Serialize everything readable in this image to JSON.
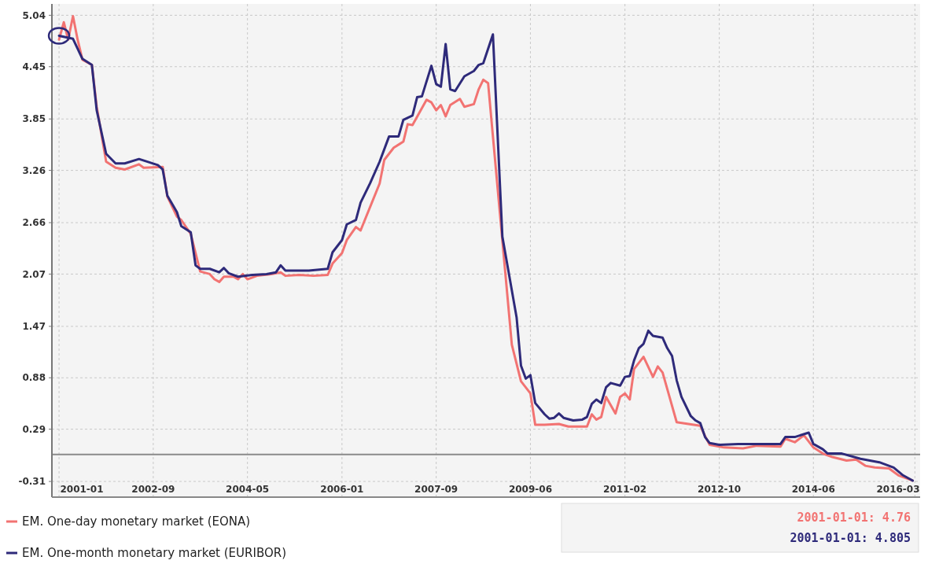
{
  "chart_data": {
    "type": "line",
    "xlim": [
      "2000-11-16",
      "2016-03-20"
    ],
    "ylim": [
      -0.49,
      5.17
    ],
    "yticks": [
      5.04,
      4.45,
      3.85,
      3.26,
      2.66,
      2.07,
      1.47,
      0.88,
      0.29,
      -0.31
    ],
    "xticks": [
      {
        "value": "2001-01-01",
        "label": "2001-01"
      },
      {
        "value": "2002-09-01",
        "label": "2002-09"
      },
      {
        "value": "2004-05-01",
        "label": "2004-05"
      },
      {
        "value": "2006-01-01",
        "label": "2006-01"
      },
      {
        "value": "2007-09-01",
        "label": "2007-09"
      },
      {
        "value": "2009-05-01",
        "label": "2009-06"
      },
      {
        "value": "2011-01-01",
        "label": "2011-02"
      },
      {
        "value": "2012-09-01",
        "label": "2012-10"
      },
      {
        "value": "2014-05-01",
        "label": "2014-06"
      },
      {
        "value": "2016-02-15",
        "label": "2016-03"
      }
    ],
    "grid": true,
    "legend": "bottom left",
    "marker": "none",
    "line_style": "solid",
    "ref_lines": [
      {
        "axis": "y",
        "value": 0,
        "color": "#8a8a8a"
      }
    ],
    "annotations": [
      "2001-01-01: 4.76",
      "2001-01-01: 4.805"
    ],
    "series": [
      {
        "name": "EM. One-day monetary market (EONA)",
        "color": "#f27372",
        "x": [
          "2001-01",
          "2001-02",
          "2001-03",
          "2001-04",
          "2001-05",
          "2001-06",
          "2001-08",
          "2001-09",
          "2001-11",
          "2002-01",
          "2002-03",
          "2002-06",
          "2002-07",
          "2002-11",
          "2002-12",
          "2003-02",
          "2003-03",
          "2003-05",
          "2003-07",
          "2003-09",
          "2003-10",
          "2003-11",
          "2003-12",
          "2004-02",
          "2004-03",
          "2004-04",
          "2004-05",
          "2004-07",
          "2004-10",
          "2004-12",
          "2005-01",
          "2005-04",
          "2005-07",
          "2005-10",
          "2005-11",
          "2006-01",
          "2006-02",
          "2006-04",
          "2006-05",
          "2006-09",
          "2006-10",
          "2006-12",
          "2007-02",
          "2007-03",
          "2007-04",
          "2007-07",
          "2007-08",
          "2007-09",
          "2007-10",
          "2007-11",
          "2007-12",
          "2008-02",
          "2008-03",
          "2008-05",
          "2008-06",
          "2008-07",
          "2008-08",
          "2009-01",
          "2009-03",
          "2009-05",
          "2009-06",
          "2009-08",
          "2009-11",
          "2010-01",
          "2010-05",
          "2010-06",
          "2010-07",
          "2010-08",
          "2010-09",
          "2010-11",
          "2010-12",
          "2011-01",
          "2011-02",
          "2011-03",
          "2011-05",
          "2011-07",
          "2011-08",
          "2011-09",
          "2011-12",
          "2012-05",
          "2012-06",
          "2012-07",
          "2012-10",
          "2013-02",
          "2013-05",
          "2013-10",
          "2013-11",
          "2014-01",
          "2014-03",
          "2014-05",
          "2014-07",
          "2014-09",
          "2014-12",
          "2015-02",
          "2015-04",
          "2015-06",
          "2015-09",
          "2015-11",
          "2016-02"
        ],
        "values": [
          4.76,
          4.96,
          4.76,
          5.03,
          4.76,
          4.53,
          4.47,
          3.99,
          3.36,
          3.29,
          3.27,
          3.33,
          3.29,
          3.3,
          2.96,
          2.73,
          2.69,
          2.53,
          2.1,
          2.07,
          2.01,
          1.98,
          2.04,
          2.04,
          2.01,
          2.07,
          2.01,
          2.05,
          2.07,
          2.09,
          2.05,
          2.06,
          2.05,
          2.06,
          2.19,
          2.31,
          2.46,
          2.61,
          2.57,
          3.11,
          3.38,
          3.52,
          3.59,
          3.79,
          3.78,
          4.07,
          4.04,
          3.95,
          4.01,
          3.88,
          4.01,
          4.08,
          3.99,
          4.02,
          4.19,
          4.3,
          4.26,
          1.26,
          0.84,
          0.7,
          0.34,
          0.34,
          0.35,
          0.32,
          0.32,
          0.46,
          0.4,
          0.43,
          0.66,
          0.47,
          0.66,
          0.7,
          0.63,
          0.98,
          1.12,
          0.89,
          1.01,
          0.94,
          0.37,
          0.33,
          0.21,
          0.11,
          0.08,
          0.07,
          0.1,
          0.09,
          0.18,
          0.14,
          0.22,
          0.08,
          0.01,
          -0.03,
          -0.07,
          -0.06,
          -0.13,
          -0.15,
          -0.16,
          -0.24,
          -0.3
        ]
      },
      {
        "name": "EM. One-month monetary market (EURIBOR)",
        "color": "#2e2a7a",
        "x": [
          "2001-01",
          "2001-04",
          "2001-06",
          "2001-08",
          "2001-09",
          "2001-11",
          "2002-01",
          "2002-03",
          "2002-06",
          "2002-10",
          "2002-11",
          "2002-12",
          "2003-02",
          "2003-03",
          "2003-05",
          "2003-06",
          "2003-07",
          "2003-09",
          "2003-11",
          "2003-12",
          "2004-01",
          "2004-03",
          "2004-06",
          "2004-09",
          "2004-11",
          "2004-12",
          "2005-01",
          "2005-06",
          "2005-10",
          "2005-11",
          "2006-01",
          "2006-02",
          "2006-04",
          "2006-05",
          "2006-07",
          "2006-09",
          "2006-11",
          "2007-01",
          "2007-02",
          "2007-04",
          "2007-05",
          "2007-06",
          "2007-08",
          "2007-09",
          "2007-10",
          "2007-11",
          "2007-12",
          "2008-01",
          "2008-03",
          "2008-05",
          "2008-06",
          "2008-07",
          "2008-09",
          "2008-11",
          "2009-02",
          "2009-03",
          "2009-04",
          "2009-05",
          "2009-06",
          "2009-08",
          "2009-09",
          "2009-10",
          "2009-11",
          "2009-12",
          "2010-02",
          "2010-04",
          "2010-05",
          "2010-06",
          "2010-07",
          "2010-08",
          "2010-09",
          "2010-10",
          "2010-12",
          "2011-01",
          "2011-02",
          "2011-03",
          "2011-04",
          "2011-05",
          "2011-06",
          "2011-07",
          "2011-09",
          "2011-10",
          "2011-11",
          "2011-12",
          "2012-01",
          "2012-03",
          "2012-04",
          "2012-05",
          "2012-06",
          "2012-07",
          "2012-09",
          "2013-01",
          "2013-05",
          "2013-10",
          "2013-11",
          "2014-01",
          "2014-04",
          "2014-05",
          "2014-07",
          "2014-08",
          "2014-11",
          "2015-03",
          "2015-07",
          "2015-10",
          "2015-12",
          "2016-02"
        ],
        "values": [
          4.805,
          4.77,
          4.54,
          4.47,
          3.95,
          3.45,
          3.34,
          3.34,
          3.39,
          3.32,
          3.27,
          2.97,
          2.78,
          2.62,
          2.55,
          2.17,
          2.13,
          2.13,
          2.09,
          2.14,
          2.08,
          2.04,
          2.06,
          2.07,
          2.09,
          2.17,
          2.11,
          2.11,
          2.13,
          2.32,
          2.46,
          2.64,
          2.69,
          2.89,
          3.11,
          3.36,
          3.65,
          3.65,
          3.84,
          3.89,
          4.1,
          4.11,
          4.46,
          4.25,
          4.22,
          4.71,
          4.19,
          4.17,
          4.34,
          4.4,
          4.47,
          4.49,
          4.82,
          2.5,
          1.57,
          1.02,
          0.87,
          0.91,
          0.59,
          0.46,
          0.41,
          0.42,
          0.47,
          0.42,
          0.39,
          0.4,
          0.43,
          0.58,
          0.63,
          0.59,
          0.77,
          0.82,
          0.79,
          0.89,
          0.9,
          1.08,
          1.22,
          1.27,
          1.42,
          1.36,
          1.34,
          1.22,
          1.13,
          0.85,
          0.66,
          0.44,
          0.39,
          0.36,
          0.2,
          0.13,
          0.11,
          0.12,
          0.12,
          0.12,
          0.2,
          0.2,
          0.25,
          0.12,
          0.06,
          0.01,
          0.01,
          -0.05,
          -0.09,
          -0.15,
          -0.24,
          -0.3
        ]
      }
    ]
  }
}
